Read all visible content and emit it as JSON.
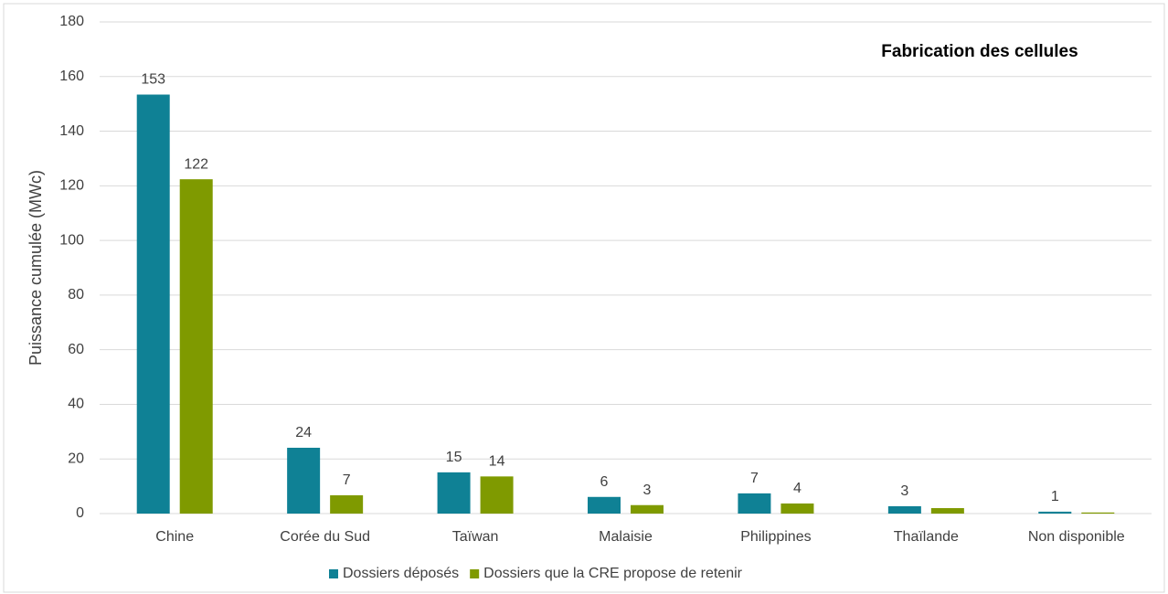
{
  "chart_data": {
    "type": "bar",
    "title": "Fabrication des cellules",
    "y_label": "Puissance cumulée (MWc)",
    "categories": [
      "Chine",
      "Corée du Sud",
      "Taïwan",
      "Malaisie",
      "Philippines",
      "Thaïlande",
      "Non disponible"
    ],
    "series": [
      {
        "name": "Dossiers déposés",
        "color": "#0f8195",
        "values": [
          153.4,
          24.1,
          15.1,
          6.1,
          7.4,
          2.7,
          0.7
        ],
        "value_labels": [
          "153",
          "24",
          "15",
          "6",
          "7",
          "3",
          "1"
        ]
      },
      {
        "name": "Dossiers que la CRE propose de retenir",
        "color": "#7f9a00",
        "values": [
          122.4,
          6.7,
          13.6,
          3.1,
          3.7,
          2,
          0.4
        ],
        "value_labels": [
          "122",
          "7",
          "14",
          "3",
          "4",
          null,
          null
        ]
      }
    ],
    "ylim": [
      0,
      180
    ],
    "yticks": [
      0,
      20,
      40,
      60,
      80,
      100,
      120,
      140,
      160,
      180
    ],
    "grid": true,
    "legend": "bottom"
  }
}
